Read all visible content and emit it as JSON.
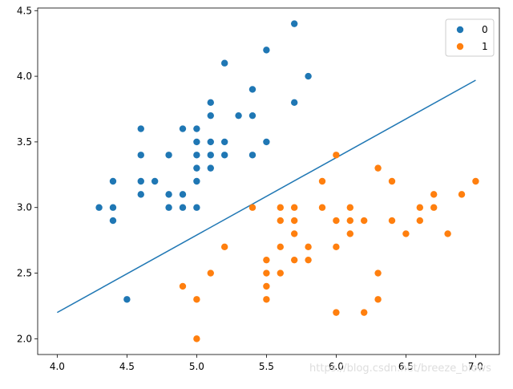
{
  "watermark": "https://blog.csdn.net/breeze_blows",
  "chart_data": {
    "type": "scatter",
    "title": "",
    "xlabel": "",
    "ylabel": "",
    "xlim": [
      3.86,
      7.17
    ],
    "ylim": [
      1.88,
      4.52
    ],
    "xticks": [
      4.0,
      4.5,
      5.0,
      5.5,
      6.0,
      6.5,
      7.0
    ],
    "yticks": [
      2.0,
      2.5,
      3.0,
      3.5,
      4.0,
      4.5
    ],
    "grid": false,
    "legend_position": "top-right",
    "series": [
      {
        "name": "0",
        "color": "#1f77b4",
        "points": [
          [
            5.7,
            4.4
          ],
          [
            5.5,
            4.2
          ],
          [
            5.2,
            4.1
          ],
          [
            5.8,
            4.0
          ],
          [
            5.4,
            3.9
          ],
          [
            5.1,
            3.8
          ],
          [
            5.7,
            3.8
          ],
          [
            5.1,
            3.7
          ],
          [
            5.3,
            3.7
          ],
          [
            5.4,
            3.7
          ],
          [
            4.6,
            3.6
          ],
          [
            4.9,
            3.6
          ],
          [
            5.0,
            3.6
          ],
          [
            5.0,
            3.5
          ],
          [
            5.1,
            3.5
          ],
          [
            5.2,
            3.5
          ],
          [
            5.5,
            3.5
          ],
          [
            4.6,
            3.4
          ],
          [
            4.8,
            3.4
          ],
          [
            5.0,
            3.4
          ],
          [
            5.1,
            3.4
          ],
          [
            5.2,
            3.4
          ],
          [
            5.4,
            3.4
          ],
          [
            5.0,
            3.3
          ],
          [
            5.1,
            3.3
          ],
          [
            4.4,
            3.2
          ],
          [
            4.6,
            3.2
          ],
          [
            4.7,
            3.2
          ],
          [
            5.0,
            3.2
          ],
          [
            4.6,
            3.1
          ],
          [
            4.8,
            3.1
          ],
          [
            4.9,
            3.1
          ],
          [
            4.3,
            3.0
          ],
          [
            4.4,
            3.0
          ],
          [
            4.8,
            3.0
          ],
          [
            4.9,
            3.0
          ],
          [
            5.0,
            3.0
          ],
          [
            4.4,
            2.9
          ],
          [
            4.5,
            2.3
          ]
        ]
      },
      {
        "name": "1",
        "color": "#ff7f0e",
        "points": [
          [
            6.0,
            3.4
          ],
          [
            6.3,
            3.3
          ],
          [
            5.9,
            3.2
          ],
          [
            6.4,
            3.2
          ],
          [
            7.0,
            3.2
          ],
          [
            6.7,
            3.1
          ],
          [
            6.9,
            3.1
          ],
          [
            5.4,
            3.0
          ],
          [
            5.6,
            3.0
          ],
          [
            5.7,
            3.0
          ],
          [
            5.9,
            3.0
          ],
          [
            6.1,
            3.0
          ],
          [
            6.6,
            3.0
          ],
          [
            6.7,
            3.0
          ],
          [
            5.6,
            2.9
          ],
          [
            5.7,
            2.9
          ],
          [
            6.0,
            2.9
          ],
          [
            6.1,
            2.9
          ],
          [
            6.2,
            2.9
          ],
          [
            6.4,
            2.9
          ],
          [
            6.6,
            2.9
          ],
          [
            5.7,
            2.8
          ],
          [
            6.1,
            2.8
          ],
          [
            6.5,
            2.8
          ],
          [
            6.8,
            2.8
          ],
          [
            5.2,
            2.7
          ],
          [
            5.6,
            2.7
          ],
          [
            5.8,
            2.7
          ],
          [
            6.0,
            2.7
          ],
          [
            5.5,
            2.6
          ],
          [
            5.7,
            2.6
          ],
          [
            5.8,
            2.6
          ],
          [
            5.1,
            2.5
          ],
          [
            5.5,
            2.5
          ],
          [
            5.6,
            2.5
          ],
          [
            6.3,
            2.5
          ],
          [
            4.9,
            2.4
          ],
          [
            5.5,
            2.4
          ],
          [
            5.0,
            2.3
          ],
          [
            5.5,
            2.3
          ],
          [
            6.3,
            2.3
          ],
          [
            6.0,
            2.2
          ],
          [
            6.2,
            2.2
          ],
          [
            5.0,
            2.0
          ]
        ]
      }
    ],
    "boundary_line": {
      "color": "#1f77b4",
      "points": [
        [
          4.0,
          2.2
        ],
        [
          7.0,
          3.97
        ]
      ]
    }
  }
}
